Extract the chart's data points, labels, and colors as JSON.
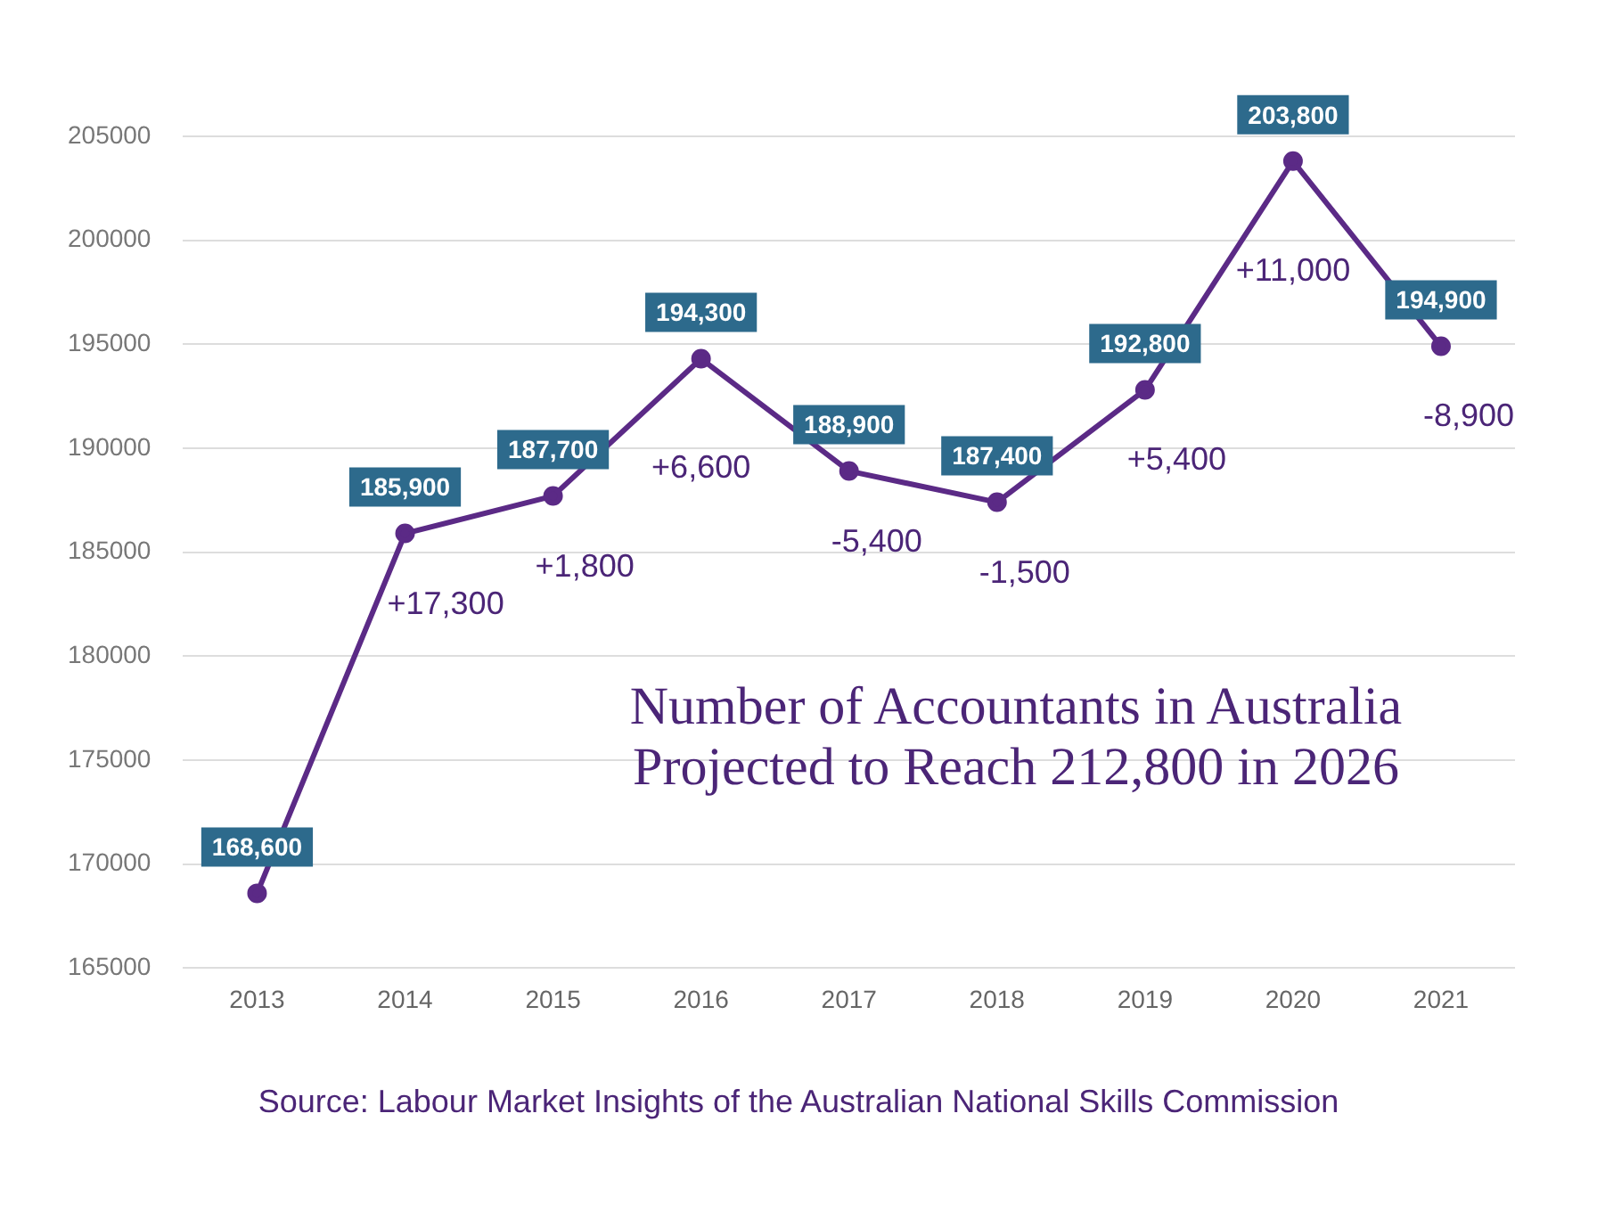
{
  "chart_data": {
    "type": "line",
    "title": "Number of Accountants in Australia Projected to Reach 212,800 in 2026",
    "categories": [
      "2013",
      "2014",
      "2015",
      "2016",
      "2017",
      "2018",
      "2019",
      "2020",
      "2021"
    ],
    "series": [
      {
        "color": "#5b2a86",
        "values": [
          168600,
          185900,
          187700,
          194300,
          188900,
          187400,
          192800,
          203800,
          194900
        ],
        "value_labels": [
          "168,600",
          "185,900",
          "187,700",
          "194,300",
          "188,900",
          "187,400",
          "192,800",
          "203,800",
          "194,900"
        ]
      }
    ],
    "ylim": [
      165000,
      205000
    ],
    "yticks": [
      165000,
      170000,
      175000,
      180000,
      185000,
      190000,
      195000,
      200000,
      205000
    ],
    "grid": "y",
    "legend": false,
    "marker": "circle",
    "line_style": "solid",
    "annotations": [
      "+17,300",
      "+1,800",
      "+6,600",
      "-5,400",
      "-1,500",
      "+5,400",
      "+11,000",
      "-8,900",
      "Source: Labour Market Insights of the Australian National Skills Commission"
    ]
  }
}
